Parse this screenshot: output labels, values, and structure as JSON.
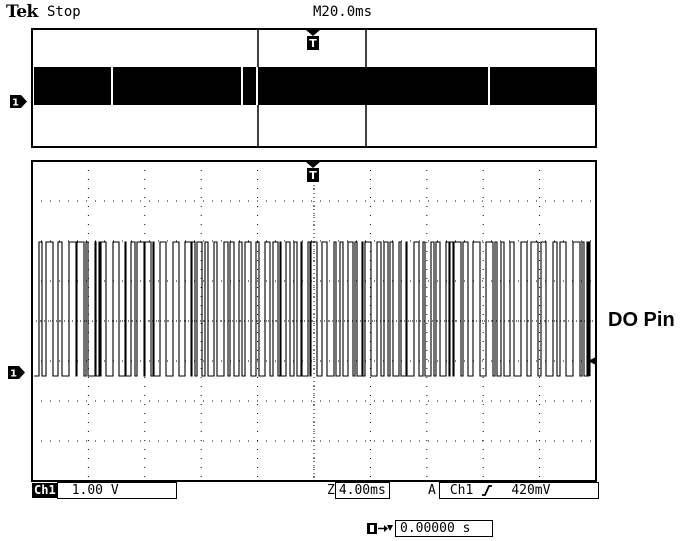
{
  "header": {
    "brand": "Tek",
    "status": "Stop",
    "timebase": "M20.0ms"
  },
  "overview_pane": {
    "trigger_marker": "T",
    "channel_marker": "1"
  },
  "zoom_pane": {
    "trigger_marker": "T",
    "channel_marker": "1",
    "grid_divisions": {
      "horizontal": 10,
      "vertical": 8
    }
  },
  "side_label": "DO Pin",
  "readouts": {
    "channel_tag": "Ch1",
    "volts_per_div": "1.00 V",
    "zoom_prefix": "Z",
    "zoom_timebase": "4.00ms",
    "acq_mode": "A",
    "trigger_source": "Ch1",
    "trigger_slope_icon": "rising-edge-icon",
    "trigger_level": "420mV",
    "trigger_offset_icon": "trigger-position-icon",
    "trigger_offset": "0.00000 s"
  },
  "colors": {
    "trace": "#000000",
    "graticule": "#000000",
    "background": "#ffffff"
  }
}
